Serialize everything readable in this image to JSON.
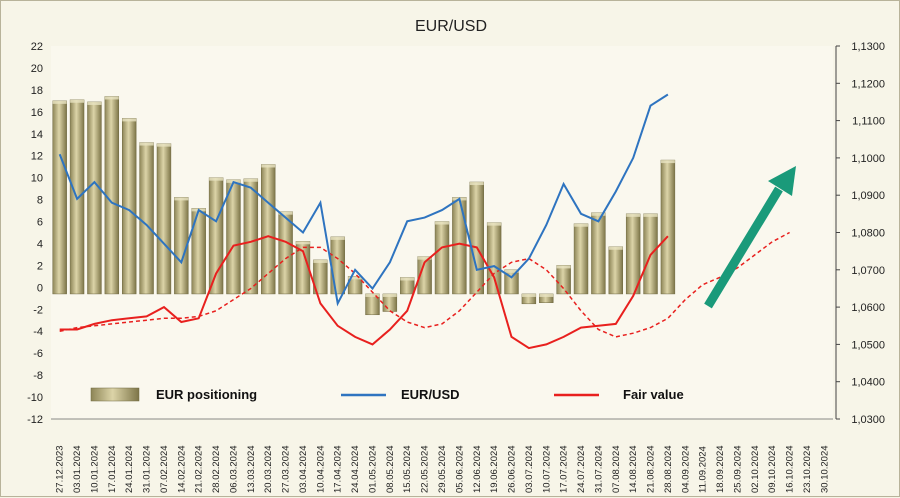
{
  "chart_data": {
    "type": "bar",
    "title": "EUR/USD",
    "dates": [
      "27.12.2023",
      "03.01.2024",
      "10.01.2024",
      "17.01.2024",
      "24.01.2024",
      "31.01.2024",
      "07.02.2024",
      "14.02.2024",
      "21.02.2024",
      "28.02.2024",
      "06.03.2024",
      "13.03.2024",
      "20.03.2024",
      "27.03.2024",
      "03.04.2024",
      "10.04.2024",
      "17.04.2024",
      "24.04.2024",
      "01.05.2024",
      "08.05.2024",
      "15.05.2024",
      "22.05.2024",
      "29.05.2024",
      "05.06.2024",
      "12.06.2024",
      "19.06.2024",
      "26.06.2024",
      "03.07.2024",
      "10.07.2024",
      "17.07.2024",
      "24.07.2024",
      "31.07.2024",
      "07.08.2024",
      "14.08.2024",
      "21.08.2024",
      "28.08.2024",
      "04.09.2024",
      "11.09.2024",
      "18.09.2024",
      "25.09.2024",
      "02.10.2024",
      "09.10.2024",
      "16.10.2024",
      "23.10.2024",
      "30.10.2024"
    ],
    "y_left": {
      "min": -12,
      "max": 22,
      "step": 2
    },
    "y_right": {
      "min": 1.03,
      "max": 1.13,
      "step": 0.01,
      "labels": [
        "1,0300",
        "1,0400",
        "1,0500",
        "1,0600",
        "1,0700",
        "1,0800",
        "1,0900",
        "1,1000",
        "1,1100",
        "1,1200",
        "1,1300"
      ]
    },
    "series": [
      {
        "name": "EUR positioning",
        "kind": "bar",
        "axis": "left",
        "color": "#c9bf8e",
        "values": [
          17.0,
          17.1,
          16.9,
          17.4,
          15.4,
          13.2,
          13.1,
          8.2,
          7.2,
          10.0,
          9.8,
          9.9,
          11.2,
          6.9,
          4.2,
          2.5,
          4.6,
          1.0,
          -2.5,
          -2.2,
          0.9,
          2.8,
          6.0,
          8.2,
          9.6,
          5.9,
          1.6,
          -1.5,
          -1.4,
          2.0,
          5.8,
          6.8,
          3.7,
          6.7,
          6.7,
          11.6,
          null,
          null,
          null,
          null,
          null,
          null,
          null,
          null,
          null
        ]
      },
      {
        "name": "EUR/USD",
        "kind": "line",
        "axis": "right",
        "color": "#2e74c0",
        "values": [
          1.101,
          1.089,
          1.0935,
          1.088,
          1.086,
          1.082,
          1.077,
          1.072,
          1.086,
          1.083,
          1.0935,
          1.092,
          1.088,
          1.084,
          1.08,
          1.088,
          1.061,
          1.07,
          1.065,
          1.072,
          1.083,
          1.084,
          1.086,
          1.089,
          1.07,
          1.071,
          1.068,
          1.073,
          1.082,
          1.093,
          1.085,
          1.083,
          1.091,
          1.1,
          1.114,
          1.117,
          null,
          null,
          null,
          null,
          null,
          null,
          null,
          null,
          null
        ]
      },
      {
        "name": "Fair value",
        "kind": "line",
        "axis": "right",
        "color": "#e8201e",
        "values": [
          1.054,
          1.054,
          1.0555,
          1.0565,
          1.057,
          1.0575,
          1.06,
          1.056,
          1.057,
          1.069,
          1.0765,
          1.0775,
          1.079,
          1.0775,
          1.075,
          1.061,
          1.055,
          1.052,
          1.05,
          1.054,
          1.059,
          1.072,
          1.076,
          1.077,
          1.076,
          1.068,
          1.052,
          1.049,
          1.05,
          1.052,
          1.0545,
          1.055,
          1.0555,
          1.063,
          1.074,
          1.079,
          null,
          null,
          null,
          null,
          null,
          null,
          null,
          null,
          null
        ]
      },
      {
        "name": "Fair value forecast",
        "kind": "dashed",
        "axis": "right",
        "color": "#e8201e",
        "values": [
          1.0535,
          1.0545,
          1.055,
          1.0555,
          1.056,
          1.0565,
          1.057,
          1.057,
          1.0575,
          1.059,
          1.062,
          1.065,
          1.069,
          1.073,
          1.076,
          1.076,
          1.073,
          1.069,
          1.064,
          1.059,
          1.056,
          1.0545,
          1.0555,
          1.059,
          1.064,
          1.069,
          1.072,
          1.073,
          1.07,
          1.065,
          1.059,
          1.054,
          1.052,
          1.053,
          1.0545,
          1.057,
          1.062,
          1.066,
          1.068,
          1.0705,
          1.074,
          1.0775,
          1.08,
          null,
          null
        ]
      }
    ],
    "legend": [
      "EUR positioning",
      "EUR/USD",
      "Fair value"
    ],
    "legend_position": "bottom",
    "annotation": "green upward arrow",
    "grid": false
  },
  "colors": {
    "background": "#f7f5e8",
    "plot": "#faf8ee",
    "bar": "#c9bf8e",
    "eurusd": "#2e74c0",
    "fair": "#e8201e",
    "arrow": "#1a9a7a"
  }
}
